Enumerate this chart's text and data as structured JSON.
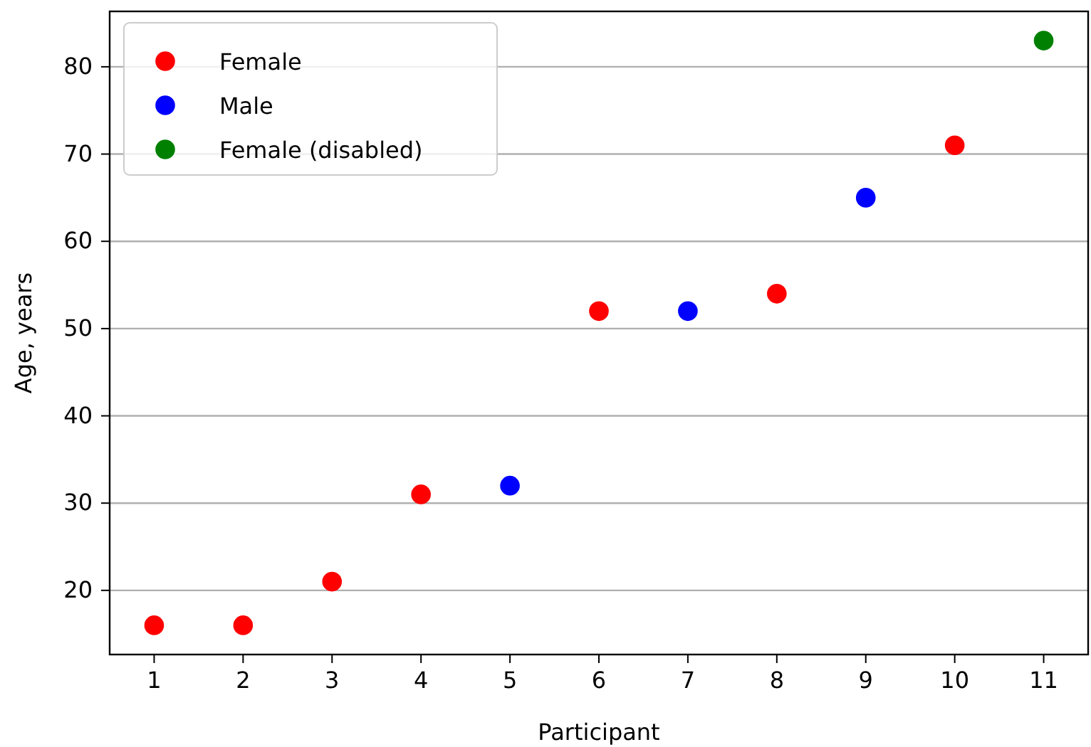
{
  "chart_data": {
    "type": "scatter",
    "xlabel": "Participant",
    "ylabel": "Age, years",
    "xlim": [
      0.5,
      11.5
    ],
    "xticks": [
      1,
      2,
      3,
      4,
      5,
      6,
      7,
      8,
      9,
      10,
      11
    ],
    "ylim": [
      12.65,
      86.35
    ],
    "yticks": [
      20,
      30,
      40,
      50,
      60,
      70,
      80
    ],
    "grid": "y",
    "legend": "top left",
    "marker": "circle",
    "series": [
      {
        "name": "Female",
        "color": "#ff0000",
        "x": [
          1,
          2,
          3,
          4,
          6,
          8,
          10
        ],
        "values": [
          16,
          16,
          21,
          31,
          52,
          54,
          71
        ]
      },
      {
        "name": "Male",
        "color": "#0000ff",
        "x": [
          5,
          7,
          9
        ],
        "values": [
          32,
          52,
          65
        ]
      },
      {
        "name": "Female (disabled)",
        "color": "#008000",
        "x": [
          11
        ],
        "values": [
          83
        ]
      }
    ]
  }
}
